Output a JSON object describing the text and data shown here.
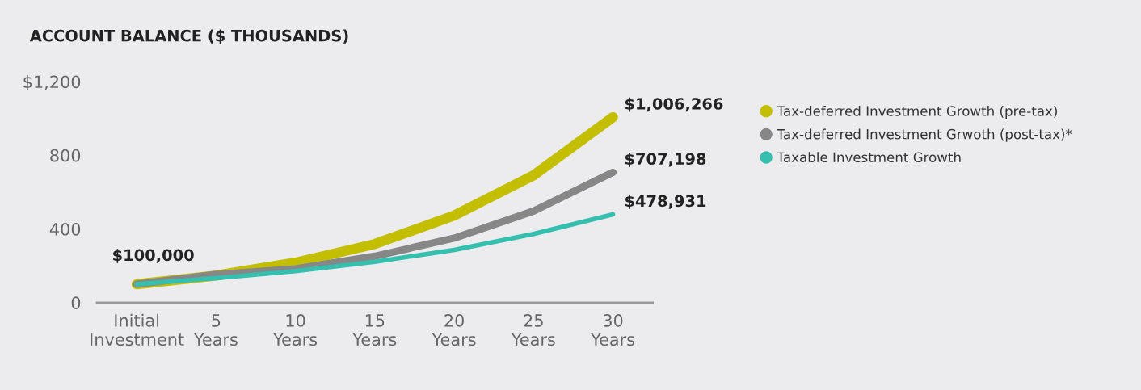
{
  "chart_data": {
    "type": "line",
    "title": "ACCOUNT BALANCE ($ THOUSANDS)",
    "categories": [
      "Initial\nInvestment",
      "5\nYears",
      "10\nYears",
      "15\nYears",
      "20\nYears",
      "25\nYears",
      "30\nYears"
    ],
    "series": [
      {
        "name": "Tax-deferred Investment Growth (pre-tax)",
        "color": "#c4be00",
        "values": [
          100,
          147,
          217,
          318,
          473,
          691,
          1006.266
        ]
      },
      {
        "name": "Tax-deferred Investment Grwoth (post-tax)*",
        "color": "#878787",
        "values": [
          100,
          153,
          183,
          252,
          350,
          497,
          707.198
        ]
      },
      {
        "name": "Taxable Investment Growth",
        "color": "#35bfae",
        "values": [
          100,
          133,
          171,
          222,
          286,
          373,
          478.931
        ]
      }
    ],
    "annotations": [
      {
        "text": "$100,000",
        "x": "Initial\nInvestment",
        "y": 100
      },
      {
        "text": "$1,006,266",
        "x": "30\nYears",
        "y": 1006.266
      },
      {
        "text": "$707,198",
        "x": "30\nYears",
        "y": 707.198
      },
      {
        "text": "$478,931",
        "x": "30\nYears",
        "y": 478.931
      }
    ],
    "ylim": [
      0,
      1200
    ],
    "yticks": [
      0,
      400,
      800,
      {
        "value": 1200,
        "label": "$1,200"
      }
    ],
    "grid": false,
    "legend": "right",
    "marker": "none",
    "line_style": "solid"
  }
}
